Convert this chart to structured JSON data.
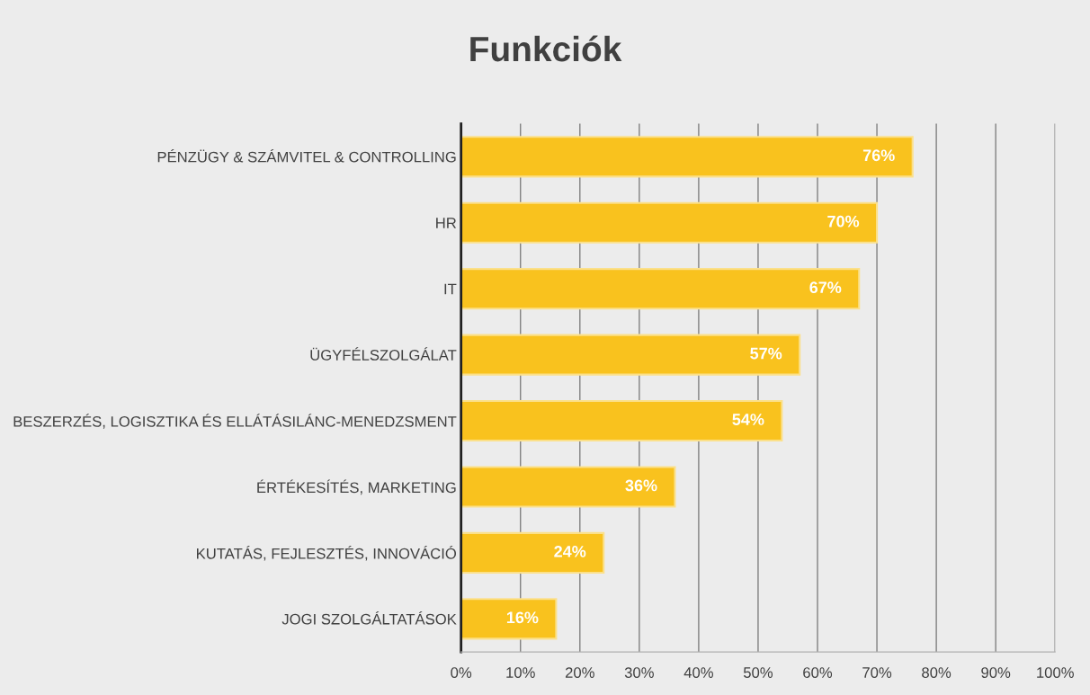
{
  "chart_data": {
    "type": "bar",
    "orientation": "horizontal",
    "title": "Funkciók",
    "categories": [
      "PÉNZÜGY & SZÁMVITEL & CONTROLLING",
      "HR",
      "IT",
      "ÜGYFÉLSZOLGÁLAT",
      "BESZERZÉS, LOGISZTIKA ÉS ELLÁTÁSILÁNC-MENEDZSMENT",
      "ÉRTÉKESÍTÉS, MARKETING",
      "KUTATÁS, FEJLESZTÉS, INNOVÁCIÓ",
      "JOGI SZOLGÁLTATÁSOK"
    ],
    "values": [
      76,
      70,
      67,
      57,
      54,
      36,
      24,
      16
    ],
    "value_labels": [
      "76%",
      "70%",
      "67%",
      "57%",
      "54%",
      "36%",
      "24%",
      "16%"
    ],
    "color": "#f9c21e",
    "xlim": [
      0,
      100
    ],
    "xticks": [
      {
        "value": 0,
        "label": "0%"
      },
      {
        "value": 10,
        "label": "10%"
      },
      {
        "value": 20,
        "label": "20%"
      },
      {
        "value": 30,
        "label": "30%"
      },
      {
        "value": 40,
        "label": "40%"
      },
      {
        "value": 50,
        "label": "50%"
      },
      {
        "value": 60,
        "label": "60%"
      },
      {
        "value": 70,
        "label": "70%"
      },
      {
        "value": 80,
        "label": "80%"
      },
      {
        "value": 90,
        "label": "90%"
      },
      {
        "value": 100,
        "label": "100%"
      }
    ],
    "grid": "x",
    "legend": false
  }
}
